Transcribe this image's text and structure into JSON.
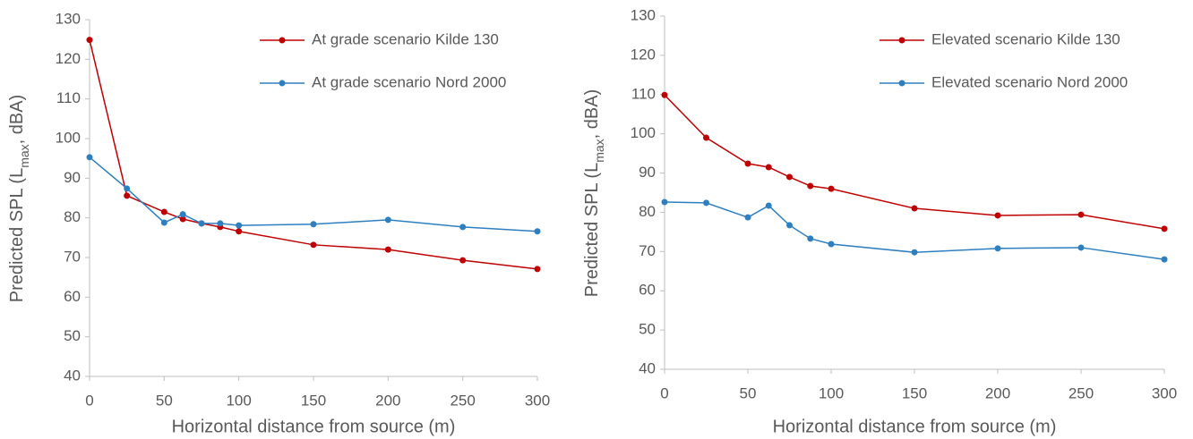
{
  "chart_data": [
    {
      "type": "line",
      "x_label": "Horizontal distance from source (m)",
      "y_label": [
        "Predicted SPL (L",
        "max",
        ", dBA)"
      ],
      "xlim": [
        0,
        300
      ],
      "xticks": [
        0,
        50,
        100,
        150,
        200,
        250,
        300
      ],
      "ylim": [
        40,
        130
      ],
      "yticks": [
        40,
        50,
        60,
        70,
        80,
        90,
        100,
        110,
        120,
        130
      ],
      "legend": "upper right",
      "x": [
        0,
        25,
        50,
        62.5,
        75,
        87.5,
        100,
        150,
        200,
        250,
        300
      ],
      "series": [
        {
          "name": "At grade scenario Kilde 130",
          "color": "#c00000",
          "values": [
            124.9,
            85.6,
            81.5,
            79.7,
            78.6,
            77.7,
            76.6,
            73.2,
            72.0,
            69.3,
            67.1
          ]
        },
        {
          "name": "At grade scenario Nord 2000",
          "color": "#2e7fc0",
          "values": [
            95.3,
            87.4,
            78.8,
            80.9,
            78.6,
            78.6,
            78.1,
            78.4,
            79.5,
            77.7,
            76.6
          ]
        }
      ]
    },
    {
      "type": "line",
      "x_label": "Horizontal distance from source (m)",
      "y_label": [
        "Predicted SPL (L",
        "max",
        ", dBA)"
      ],
      "xlim": [
        0,
        300
      ],
      "xticks": [
        0,
        50,
        100,
        150,
        200,
        250,
        300
      ],
      "ylim": [
        40,
        130
      ],
      "yticks": [
        40,
        50,
        60,
        70,
        80,
        90,
        100,
        110,
        120,
        130
      ],
      "legend": "upper right",
      "x": [
        0,
        25,
        50,
        62.5,
        75,
        87.5,
        100,
        150,
        200,
        250,
        300
      ],
      "series": [
        {
          "name": "Elevated scenario Kilde 130",
          "color": "#c00000",
          "values": [
            109.9,
            99.0,
            92.4,
            91.5,
            89.0,
            86.7,
            86.0,
            81.0,
            79.2,
            79.4,
            75.8
          ]
        },
        {
          "name": "Elevated scenario Nord 2000",
          "color": "#2e7fc0",
          "values": [
            82.6,
            82.4,
            78.7,
            81.7,
            76.7,
            73.3,
            71.9,
            69.8,
            70.8,
            71.0,
            68.0
          ]
        }
      ]
    }
  ]
}
